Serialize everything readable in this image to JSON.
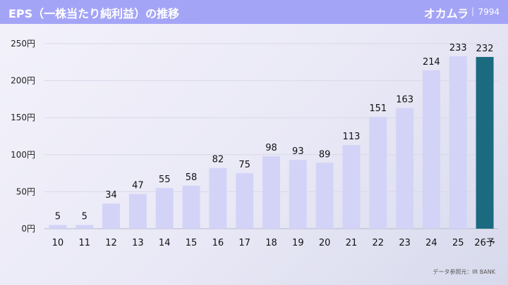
{
  "header": {
    "title": "EPS（一株当たり純利益）の推移",
    "company": "オカムラ",
    "separator": "|",
    "code": "7994"
  },
  "source": "データ参照元：IR BANK",
  "colors": {
    "header_bg": "#a4a4f7",
    "bar": "#d3d3f8",
    "highlight_bar": "#1b6a80",
    "grid": "#d8d8e8"
  },
  "chart_data": {
    "type": "bar",
    "title": "EPS（一株当たり純利益）の推移",
    "categories": [
      "10",
      "11",
      "12",
      "13",
      "14",
      "15",
      "16",
      "17",
      "18",
      "19",
      "20",
      "21",
      "22",
      "23",
      "24",
      "25",
      "26予"
    ],
    "values": [
      5,
      5,
      34,
      47,
      55,
      58,
      82,
      75,
      98,
      93,
      89,
      113,
      151,
      163,
      214,
      233,
      232
    ],
    "value_labels": [
      "5",
      "5",
      "34",
      "47",
      "55",
      "58",
      "82",
      "75",
      "98",
      "93",
      "89",
      "113",
      "151",
      "163",
      "214",
      "233",
      "232"
    ],
    "highlight_index": 16,
    "yticks": [
      0,
      50,
      100,
      150,
      200,
      250
    ],
    "ytick_labels": [
      "0円",
      "50円",
      "100円",
      "150円",
      "200円",
      "250円"
    ],
    "ylim": [
      0,
      250
    ],
    "grid": true,
    "legend": "none"
  }
}
